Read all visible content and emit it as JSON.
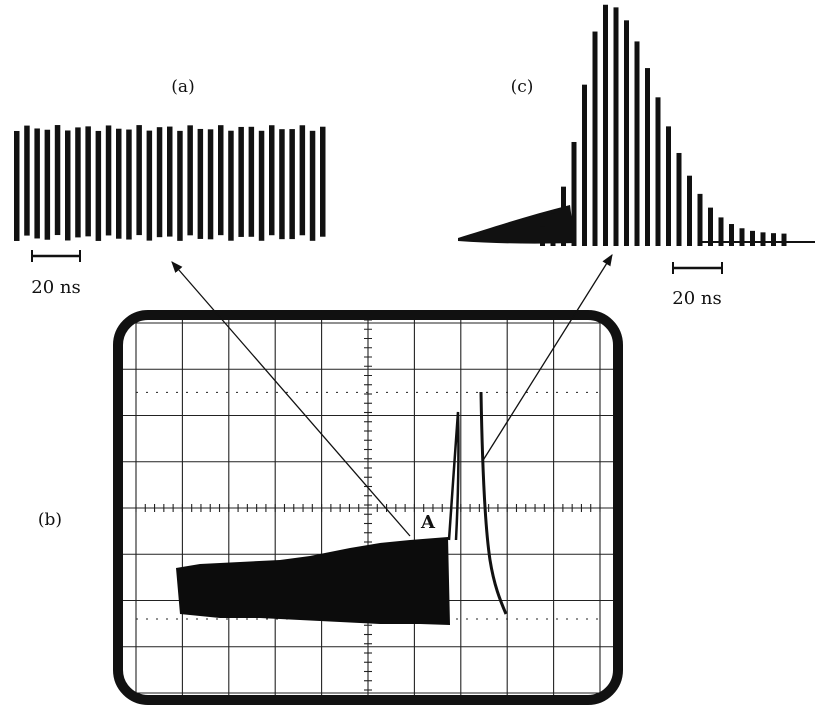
{
  "panels": [
    {
      "label": "(a)",
      "scale_bar": "20 ns"
    },
    {
      "label": "(b)",
      "marker": "A"
    },
    {
      "label": "(c)",
      "scale_bar": "20 ns"
    }
  ]
}
